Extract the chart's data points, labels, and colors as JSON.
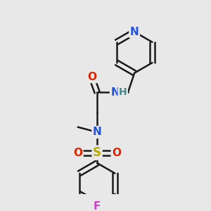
{
  "bg_color": "#e8e8e8",
  "bond_color": "#1a1a1a",
  "bond_width": 1.8,
  "figsize": [
    3.0,
    3.0
  ],
  "dpi": 100,
  "colors": {
    "N": "#2255dd",
    "O": "#dd2200",
    "S": "#bbaa00",
    "F": "#cc44cc",
    "H": "#448888",
    "C": "#1a1a1a"
  }
}
